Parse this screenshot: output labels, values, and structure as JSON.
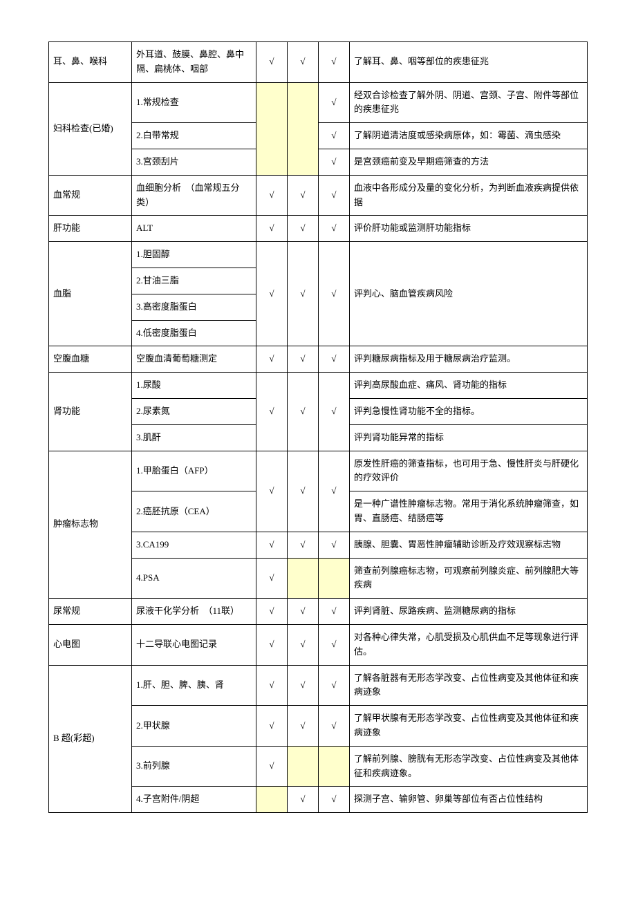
{
  "check": "√",
  "table": {
    "colors": {
      "highlight": "#ffffcc",
      "border": "#000000",
      "bg": "#ffffff",
      "text": "#000000"
    },
    "rows": [
      {
        "cat": "耳、鼻、喉科",
        "item": "外耳道、鼓膜、鼻腔、鼻中隔、扁桃体、咽部",
        "c1": true,
        "c2": true,
        "c3": true,
        "desc": "了解耳、鼻、咽等部位的疾患征兆"
      },
      {
        "cat": "妇科检查(已婚)",
        "catRowspan": 3,
        "item": "1.常规检查",
        "c1": null,
        "c1Rowspan": 3,
        "c1Yellow": true,
        "c2": null,
        "c2Rowspan": 3,
        "c2Yellow": true,
        "c3": true,
        "desc": "经双合诊检查了解外阴、阴道、宫颈、子宫、附件等部位的疾患征兆"
      },
      {
        "item": "2.白带常规",
        "c3": true,
        "desc": "了解阴道清洁度或感染病原体，如：霉菌、滴虫感染"
      },
      {
        "item": "3.宫颈刮片",
        "c3": true,
        "desc": "是宫颈癌前变及早期癌筛查的方法"
      },
      {
        "cat": "血常规",
        "item": "血细胞分析　（血常规五分类）",
        "c1": true,
        "c2": true,
        "c3": true,
        "desc": "血液中各形成分及量的变化分析，为判断血液疾病提供依据"
      },
      {
        "cat": "肝功能",
        "item": "ALT",
        "c1": true,
        "c2": true,
        "c3": true,
        "desc": "评价肝功能或监测肝功能指标"
      },
      {
        "cat": "血脂",
        "catRowspan": 4,
        "item": "1.胆固醇",
        "c1": true,
        "c1Rowspan": 4,
        "c2": true,
        "c2Rowspan": 4,
        "c3": true,
        "c3Rowspan": 4,
        "desc": "评判心、脑血管疾病风险",
        "descRowspan": 4
      },
      {
        "item": "2.甘油三脂"
      },
      {
        "item": "3.高密度脂蛋白"
      },
      {
        "item": "4.低密度脂蛋白"
      },
      {
        "cat": "空腹血糖",
        "item": "空腹血清葡萄糖测定",
        "c1": true,
        "c2": true,
        "c3": true,
        "desc": "评判糖尿病指标及用于糖尿病治疗监测。"
      },
      {
        "cat": "肾功能",
        "catRowspan": 3,
        "item": "1.尿酸",
        "c1": true,
        "c1Rowspan": 3,
        "c2": true,
        "c2Rowspan": 3,
        "c3": true,
        "c3Rowspan": 3,
        "desc": "评判高尿酸血症、痛风、肾功能的指标"
      },
      {
        "item": "2.尿素氮",
        "desc": "评判急慢性肾功能不全的指标。"
      },
      {
        "item": "3.肌酐",
        "desc": "评判肾功能异常的指标"
      },
      {
        "cat": "肿瘤标志物",
        "catRowspan": 4,
        "item": "1.甲胎蛋白（AFP）",
        "c1": true,
        "c1Rowspan": 2,
        "c2": true,
        "c2Rowspan": 2,
        "c3": true,
        "c3Rowspan": 2,
        "desc": "原发性肝癌的筛查指标，也可用于急、慢性肝炎与肝硬化的疗效评价"
      },
      {
        "item": "2.癌胚抗原（CEA）",
        "desc": "是一种广谱性肿瘤标志物。常用于消化系统肿瘤筛查，如胃、直肠癌、结肠癌等"
      },
      {
        "item": "3.CA199",
        "c1": true,
        "c2": true,
        "c3": true,
        "desc": "胰腺、胆囊、胃恶性肿瘤辅助诊断及疗效观察标志物"
      },
      {
        "item": "4.PSA",
        "c1": true,
        "c2": null,
        "c2Yellow": true,
        "c3": null,
        "c3Yellow": true,
        "desc": "筛查前列腺癌标志物，可观察前列腺炎症、前列腺肥大等疾病"
      },
      {
        "cat": "尿常规",
        "item": "尿液干化学分析　（11联）",
        "c1": true,
        "c2": true,
        "c3": true,
        "desc": "评判肾脏、尿路疾病、监测糖尿病的指标"
      },
      {
        "cat": "心电图",
        "item": "十二导联心电图记录",
        "c1": true,
        "c2": true,
        "c3": true,
        "desc": "对各种心律失常，心肌受损及心肌供血不足等现象进行评估。"
      },
      {
        "cat": "B 超(彩超)",
        "catRowspan": 4,
        "item": "1.肝、胆、脾、胰、肾",
        "c1": true,
        "c2": true,
        "c3": true,
        "desc": "了解各脏器有无形态学改变、占位性病变及其他体征和疾病迹象"
      },
      {
        "item": "2.甲状腺",
        "c1": true,
        "c2": true,
        "c3": true,
        "desc": "了解甲状腺有无形态学改变、占位性病变及其他体征和疾病迹象"
      },
      {
        "item": "3.前列腺",
        "c1": true,
        "c2": null,
        "c2Yellow": true,
        "c3": null,
        "c3Yellow": true,
        "desc": "了解前列腺、膀胱有无形态学改变、占位性病变及其他体征和疾病迹象。"
      },
      {
        "item": "4.子宫附件/阴超",
        "c1": null,
        "c1Yellow": true,
        "c2": true,
        "c3": true,
        "desc": "探测子宫、输卵管、卵巢等部位有否占位性结构"
      }
    ]
  }
}
